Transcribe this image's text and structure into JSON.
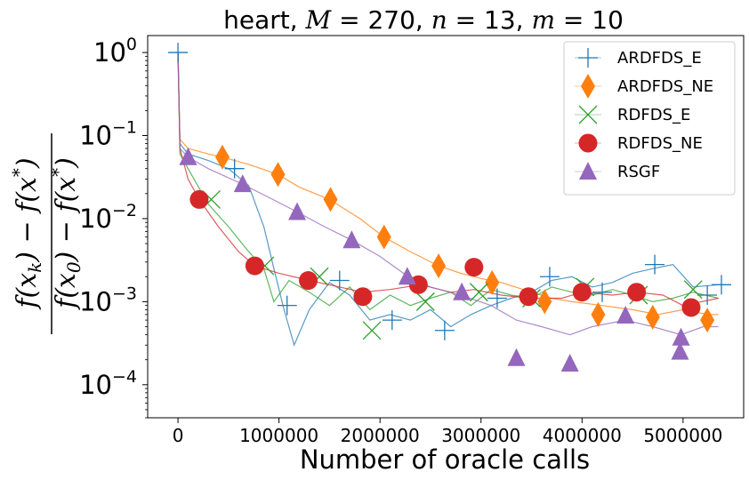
{
  "chart_data": {
    "type": "line",
    "title": "heart, M = 270, n = 13, m = 10",
    "title_parts": {
      "dataset": "heart, ",
      "M_sym": "M",
      "M_val": " = 270, ",
      "n_sym": "n",
      "n_val": " = 13, ",
      "m_sym": "m",
      "m_val": " = 10"
    },
    "xlabel": "Number of oracle calls",
    "ylabel": "(f(x_k) - f(x*)) / (f(x_0) - f(x*))",
    "ylabel_parts": {
      "numerator": "f(x",
      "num_sub": "k",
      "num_mid": ") − f(x",
      "num_sup": "*",
      "close": ")",
      "denominator": "f(x",
      "den_sub": "0",
      "den_mid": ") − f(x",
      "den_sup": "*"
    },
    "xscale": "linear",
    "yscale": "log",
    "xlim": [
      -300000,
      5600000
    ],
    "ylim": [
      4e-05,
      1.6
    ],
    "x_ticks": [
      0,
      1000000,
      2000000,
      3000000,
      4000000,
      5000000
    ],
    "x_tick_labels": [
      "0",
      "1000000",
      "2000000",
      "3000000",
      "4000000",
      "5000000"
    ],
    "y_ticks": [
      1,
      0.1,
      0.01,
      0.001,
      0.0001
    ],
    "y_tick_labels": [
      {
        "base": "10",
        "exp": "0"
      },
      {
        "base": "10",
        "exp": "−1"
      },
      {
        "base": "10",
        "exp": "−2"
      },
      {
        "base": "10",
        "exp": "−3"
      },
      {
        "base": "10",
        "exp": "−4"
      }
    ],
    "legend_position": "top-right",
    "series": [
      {
        "name": "ARDFDS_E",
        "color": "#1f77b4",
        "marker": "plus",
        "x": [
          0,
          20000,
          100000,
          300000,
          500000,
          700000,
          850000,
          950000,
          1050000,
          1150000,
          1300000,
          1500000,
          1700000,
          1900000,
          2100000,
          2300000,
          2500000,
          2700000,
          2900000,
          3100000,
          3300000,
          3500000,
          3700000,
          3900000,
          4100000,
          4300000,
          4500000,
          4700000,
          4900000,
          5100000,
          5350000
        ],
        "values": [
          1.0,
          0.08,
          0.06,
          0.05,
          0.04,
          0.025,
          0.008,
          0.0025,
          0.0008,
          0.0003,
          0.0008,
          0.0017,
          0.0012,
          0.0006,
          0.0007,
          0.0006,
          0.0008,
          0.0005,
          0.0007,
          0.0009,
          0.0011,
          0.0013,
          0.0018,
          0.002,
          0.0015,
          0.0017,
          0.0022,
          0.0025,
          0.0028,
          0.0015,
          0.0016
        ],
        "markers_x": [
          0,
          560000,
          1080000,
          1600000,
          2120000,
          2640000,
          3160000,
          3680000,
          4200000,
          4720000,
          5240000,
          5380000
        ],
        "markers_y": [
          1.0,
          0.04,
          0.0009,
          0.0018,
          0.0006,
          0.00045,
          0.0011,
          0.002,
          0.0013,
          0.0028,
          0.0012,
          0.0016
        ]
      },
      {
        "name": "ARDFDS_NE",
        "color": "#ff7f0e",
        "marker": "diamond",
        "x": [
          0,
          20000,
          100000,
          300000,
          440000,
          700000,
          990000,
          1200000,
          1500000,
          1800000,
          2040000,
          2300000,
          2580000,
          2800000,
          3000000,
          3200000,
          3500000,
          3700000,
          3900000,
          4200000,
          4500000,
          4750000,
          5000000,
          5250000,
          5350000
        ],
        "values": [
          1.0,
          0.09,
          0.07,
          0.06,
          0.055,
          0.045,
          0.034,
          0.024,
          0.017,
          0.01,
          0.006,
          0.004,
          0.0027,
          0.0022,
          0.0019,
          0.0017,
          0.0013,
          0.0011,
          0.001,
          0.0009,
          0.0008,
          0.0007,
          0.0008,
          0.0007,
          0.0007
        ],
        "markers_x": [
          440000,
          990000,
          1510000,
          2040000,
          2580000,
          3110000,
          3630000,
          4160000,
          4700000,
          5240000
        ],
        "markers_y": [
          0.055,
          0.034,
          0.017,
          0.006,
          0.0027,
          0.0017,
          0.001,
          0.0007,
          0.00065,
          0.0006
        ]
      },
      {
        "name": "RDFDS_E",
        "color": "#2ca02c",
        "marker": "x",
        "x": [
          0,
          20000,
          100000,
          300000,
          500000,
          700000,
          850000,
          950000,
          1100000,
          1300000,
          1500000,
          1700000,
          1900000,
          2100000,
          2300000,
          2500000,
          2700000,
          2900000,
          3100000,
          3300000,
          3500000,
          3700000,
          3900000,
          4100000,
          4300000,
          4500000,
          4700000,
          4900000,
          5100000,
          5350000
        ],
        "values": [
          1.0,
          0.06,
          0.04,
          0.015,
          0.008,
          0.004,
          0.0025,
          0.001,
          0.0018,
          0.0013,
          0.0009,
          0.0015,
          0.0008,
          0.0012,
          0.0009,
          0.0011,
          0.0013,
          0.0009,
          0.0014,
          0.0012,
          0.0011,
          0.0015,
          0.0013,
          0.0012,
          0.0014,
          0.0012,
          0.001,
          0.0011,
          0.0013,
          0.0011
        ],
        "markers_x": [
          330000,
          860000,
          1400000,
          1920000,
          2450000,
          2980000,
          3500000,
          4030000,
          4560000,
          5100000
        ],
        "markers_y": [
          0.017,
          0.0027,
          0.002,
          0.00045,
          0.001,
          0.0013,
          0.0011,
          0.0015,
          0.0012,
          0.0014
        ]
      },
      {
        "name": "RDFDS_NE",
        "color": "#d62728",
        "marker": "circle",
        "x": [
          0,
          20000,
          100000,
          210000,
          400000,
          600000,
          760000,
          1000000,
          1300000,
          1600000,
          1830000,
          2100000,
          2400000,
          2700000,
          2930000,
          3200000,
          3470000,
          3800000,
          4000000,
          4300000,
          4540000,
          4800000,
          5000000,
          5350000
        ],
        "values": [
          1.0,
          0.07,
          0.03,
          0.017,
          0.008,
          0.004,
          0.0027,
          0.0022,
          0.0018,
          0.0015,
          0.0013,
          0.0014,
          0.0016,
          0.0013,
          0.0014,
          0.0012,
          0.0011,
          0.0011,
          0.0013,
          0.0012,
          0.0013,
          0.0012,
          0.0009,
          0.0011
        ],
        "markers_x": [
          210000,
          760000,
          1290000,
          1830000,
          2380000,
          2930000,
          3470000,
          4000000,
          4540000,
          5080000
        ],
        "markers_y": [
          0.017,
          0.0027,
          0.0018,
          0.00115,
          0.0016,
          0.0026,
          0.00115,
          0.0013,
          0.0013,
          0.00085
        ]
      },
      {
        "name": "RSGF",
        "color": "#9467bd",
        "marker": "triangle",
        "x": [
          0,
          20000,
          100000,
          300000,
          640000,
          900000,
          1180000,
          1450000,
          1720000,
          2000000,
          2280000,
          2500000,
          2800000,
          3100000,
          3350000,
          3600000,
          3880000,
          4100000,
          4430000,
          4700000,
          4980000,
          5200000,
          5350000
        ],
        "values": [
          1.0,
          0.07,
          0.055,
          0.04,
          0.026,
          0.018,
          0.012,
          0.008,
          0.0055,
          0.0035,
          0.002,
          0.0015,
          0.0012,
          0.0009,
          0.0006,
          0.0005,
          0.0004,
          0.0005,
          0.0006,
          0.0005,
          0.0004,
          0.0005,
          0.0005
        ],
        "markers_x": [
          100000,
          640000,
          1180000,
          1720000,
          2270000,
          2810000,
          3350000,
          3880000,
          4430000,
          4970000,
          4980000
        ],
        "markers_y": [
          0.055,
          0.026,
          0.012,
          0.0055,
          0.002,
          0.0013,
          0.00021,
          0.00018,
          0.00068,
          0.00025,
          0.00037
        ]
      }
    ]
  }
}
